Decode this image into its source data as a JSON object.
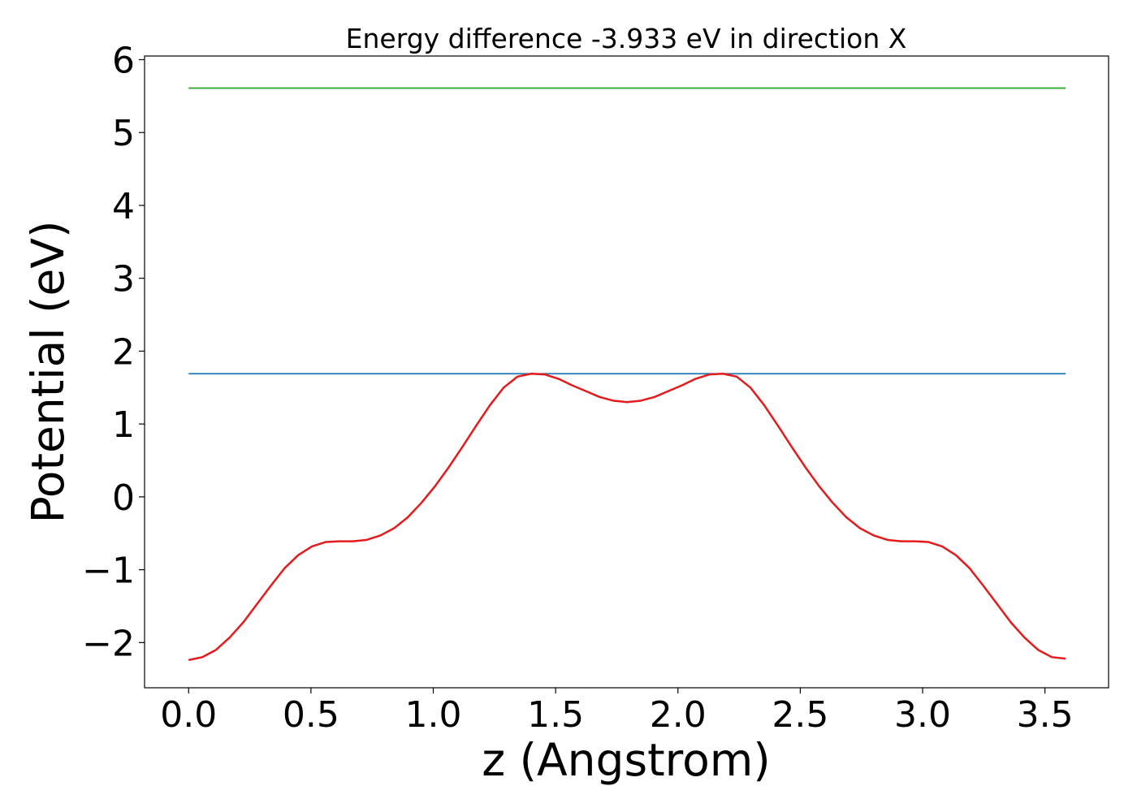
{
  "chart_data": {
    "type": "line",
    "title": "Energy difference -3.933 eV in direction X",
    "xlabel": "z (Angstrom)",
    "ylabel": "Potential (eV)",
    "xlim": [
      -0.18,
      3.76
    ],
    "ylim": [
      -2.62,
      6.05
    ],
    "xticks": [
      0.0,
      0.5,
      1.0,
      1.5,
      2.0,
      2.5,
      3.0,
      3.5
    ],
    "xtick_labels": [
      "0.0",
      "0.5",
      "1.0",
      "1.5",
      "2.0",
      "2.5",
      "3.0",
      "3.5"
    ],
    "yticks": [
      -2,
      -1,
      0,
      1,
      2,
      3,
      4,
      5,
      6
    ],
    "ytick_labels": [
      "−2",
      "−1",
      "0",
      "1",
      "2",
      "3",
      "4",
      "5",
      "6"
    ],
    "grid": false,
    "legend": "none",
    "series": [
      {
        "color": "#2ca02c",
        "x": [
          0.0,
          3.585
        ],
        "y": [
          5.61,
          5.61
        ]
      },
      {
        "color": "#1f77b4",
        "x": [
          0.0,
          3.585
        ],
        "y": [
          1.69,
          1.69
        ]
      },
      {
        "color": "#e41a1c",
        "x": [
          0.0,
          0.056,
          0.112,
          0.168,
          0.224,
          0.28,
          0.336,
          0.392,
          0.448,
          0.504,
          0.56,
          0.616,
          0.672,
          0.728,
          0.784,
          0.84,
          0.896,
          0.952,
          1.008,
          1.064,
          1.12,
          1.176,
          1.232,
          1.288,
          1.344,
          1.4,
          1.456,
          1.512,
          1.568,
          1.624,
          1.68,
          1.736,
          1.792,
          1.848,
          1.904,
          1.96,
          2.016,
          2.072,
          2.128,
          2.184,
          2.24,
          2.296,
          2.352,
          2.408,
          2.464,
          2.52,
          2.576,
          2.632,
          2.688,
          2.744,
          2.8,
          2.856,
          2.912,
          2.968,
          3.024,
          3.08,
          3.136,
          3.192,
          3.248,
          3.304,
          3.36,
          3.416,
          3.472,
          3.528,
          3.585
        ],
        "y": [
          -2.24,
          -2.2,
          -2.1,
          -1.93,
          -1.72,
          -1.47,
          -1.22,
          -0.98,
          -0.8,
          -0.68,
          -0.62,
          -0.61,
          -0.61,
          -0.59,
          -0.53,
          -0.43,
          -0.28,
          -0.08,
          0.15,
          0.41,
          0.69,
          0.98,
          1.26,
          1.5,
          1.65,
          1.69,
          1.68,
          1.62,
          1.53,
          1.45,
          1.37,
          1.32,
          1.3,
          1.32,
          1.37,
          1.45,
          1.53,
          1.62,
          1.68,
          1.69,
          1.65,
          1.5,
          1.26,
          0.98,
          0.69,
          0.41,
          0.15,
          -0.08,
          -0.28,
          -0.43,
          -0.53,
          -0.59,
          -0.61,
          -0.61,
          -0.62,
          -0.68,
          -0.8,
          -0.98,
          -1.22,
          -1.47,
          -1.72,
          -1.93,
          -2.1,
          -2.2,
          -2.22
        ]
      }
    ]
  }
}
